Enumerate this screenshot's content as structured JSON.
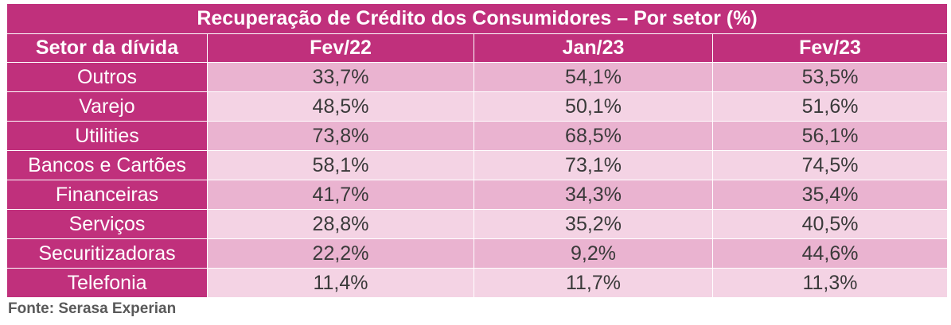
{
  "chart_data": {
    "type": "table",
    "title": "Recuperação de Crédito dos Consumidores – Por setor (%)",
    "columns": [
      "Setor da dívida",
      "Fev/22",
      "Jan/23",
      "Fev/23"
    ],
    "rows": [
      {
        "sector": "Outros",
        "values": [
          "33,7%",
          "54,1%",
          "53,5%"
        ]
      },
      {
        "sector": "Varejo",
        "values": [
          "48,5%",
          "50,1%",
          "51,6%"
        ]
      },
      {
        "sector": "Utilities",
        "values": [
          "73,8%",
          "68,5%",
          "56,1%"
        ]
      },
      {
        "sector": "Bancos e Cartões",
        "values": [
          "58,1%",
          "73,1%",
          "74,5%"
        ]
      },
      {
        "sector": "Financeiras",
        "values": [
          "41,7%",
          "34,3%",
          "35,4%"
        ]
      },
      {
        "sector": "Serviços",
        "values": [
          "28,8%",
          "35,2%",
          "40,5%"
        ]
      },
      {
        "sector": "Securitizadoras",
        "values": [
          "22,2%",
          "9,2%",
          "44,6%"
        ]
      },
      {
        "sector": "Telefonia",
        "values": [
          "11,4%",
          "11,7%",
          "11,3%"
        ]
      }
    ],
    "source": "Fonte: Serasa Experian"
  },
  "colors": {
    "header": "#c0307c",
    "row_dark": "#eab3d0",
    "row_light": "#f4d3e4",
    "source_text": "#595959"
  }
}
